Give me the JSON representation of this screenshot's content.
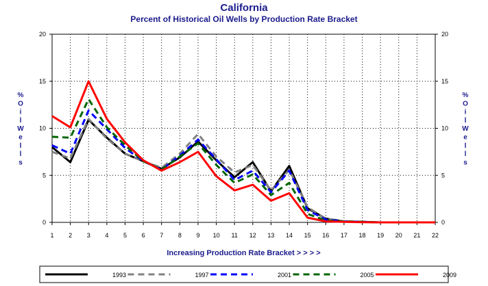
{
  "chart_data": {
    "type": "line",
    "title": "California",
    "subtitle": "Percent of Historical Oil Wells by Production Rate Bracket",
    "xlabel": "Increasing Production Rate Bracket > > > >",
    "ylabel": "% O i l W e l l s",
    "x": [
      1,
      2,
      3,
      4,
      5,
      6,
      7,
      8,
      9,
      10,
      11,
      12,
      13,
      14,
      15,
      16,
      17,
      18,
      19,
      20,
      21,
      22
    ],
    "ylim": [
      0,
      20
    ],
    "yticks": [
      0,
      5,
      10,
      15,
      20
    ],
    "grid": true,
    "legend_position": "bottom",
    "series": [
      {
        "name": "1993",
        "color": "#000000",
        "dash": "solid",
        "values": [
          8.0,
          6.4,
          10.9,
          9.0,
          7.3,
          6.5,
          5.7,
          6.9,
          8.6,
          6.6,
          4.8,
          6.4,
          3.3,
          6.0,
          1.5,
          0.4,
          0.1,
          0.05,
          0,
          0,
          0,
          0
        ]
      },
      {
        "name": "1997",
        "color": "#808080",
        "dash": "dashed",
        "values": [
          7.5,
          6.8,
          11.0,
          8.9,
          7.3,
          6.5,
          5.8,
          7.3,
          9.4,
          7.0,
          5.3,
          6.1,
          3.4,
          5.6,
          1.6,
          0.4,
          0.1,
          0.05,
          0,
          0,
          0,
          0
        ]
      },
      {
        "name": "2001",
        "color": "#0000ff",
        "dash": "dashed",
        "values": [
          8.2,
          7.3,
          11.9,
          9.9,
          7.9,
          6.5,
          5.6,
          7.1,
          8.8,
          6.7,
          4.5,
          5.5,
          3.2,
          5.5,
          1.3,
          0.3,
          0.1,
          0.05,
          0,
          0,
          0,
          0
        ]
      },
      {
        "name": "2005",
        "color": "#006400",
        "dash": "dashed",
        "values": [
          9.1,
          9.0,
          13.1,
          10.1,
          8.2,
          6.5,
          5.6,
          7.0,
          8.4,
          6.1,
          4.2,
          5.1,
          2.9,
          4.2,
          0.9,
          0.2,
          0.1,
          0.05,
          0,
          0,
          0,
          0
        ]
      },
      {
        "name": "2009",
        "color": "#ff0000",
        "dash": "solid",
        "values": [
          11.3,
          10.1,
          15.0,
          11.0,
          8.5,
          6.6,
          5.5,
          6.4,
          7.5,
          4.9,
          3.4,
          4.0,
          2.3,
          3.1,
          0.5,
          0.1,
          0.05,
          0.02,
          0,
          0,
          0,
          0
        ]
      }
    ]
  }
}
